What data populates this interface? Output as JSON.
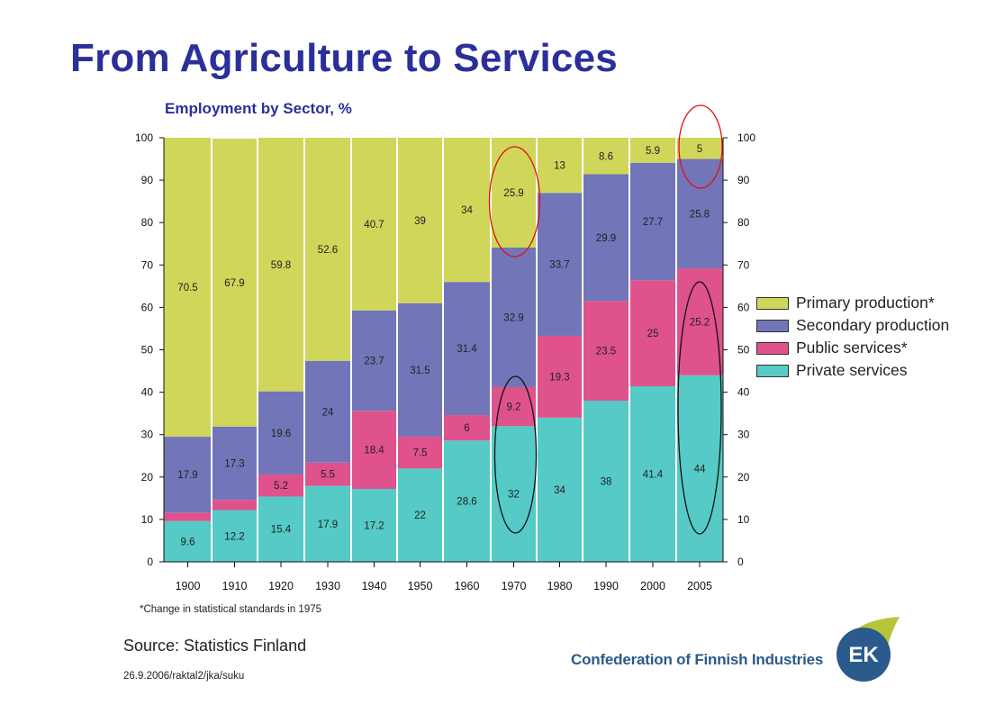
{
  "slide": {
    "title": "From Agriculture to Services",
    "subtitle": "Employment by Sector, %",
    "footnote": "*Change in statistical standards in 1975",
    "source": "Source: Statistics Finland",
    "docref": "26.9.2006/raktal2/jka/suku",
    "logo_text": "Confederation of Finnish Industries",
    "logo_mark": "EK"
  },
  "colors": {
    "primary": "#cfd65a",
    "secondary": "#7275b8",
    "public": "#e0528c",
    "private": "#55cac6",
    "title": "#2b2f9a",
    "logo_blue": "#2b5a8c",
    "logo_green": "#b6c639"
  },
  "chart_data": {
    "type": "bar",
    "stacked": true,
    "categories": [
      "1900",
      "1910",
      "1920",
      "1930",
      "1940",
      "1950",
      "1960",
      "1970",
      "1980",
      "1990",
      "2000",
      "2005"
    ],
    "series": [
      {
        "name": "Private services",
        "key": "private",
        "values": [
          9.6,
          12.2,
          15.4,
          17.9,
          17.2,
          22,
          28.6,
          32,
          34,
          38,
          41.4,
          44
        ]
      },
      {
        "name": "Public services*",
        "key": "public",
        "values": [
          2,
          2.4,
          5.2,
          5.5,
          18.4,
          7.5,
          6,
          9.2,
          19.3,
          23.5,
          25,
          25.2
        ]
      },
      {
        "name": "Secondary production",
        "key": "secondary",
        "values": [
          17.9,
          17.3,
          19.6,
          24,
          23.7,
          31.5,
          31.4,
          32.9,
          33.7,
          29.9,
          27.7,
          25.8
        ]
      },
      {
        "name": "Primary production*",
        "key": "primary",
        "values": [
          70.5,
          67.9,
          59.8,
          52.6,
          40.7,
          39,
          34,
          25.9,
          13,
          8.6,
          5.9,
          5
        ]
      }
    ],
    "data_labels": {
      "private": [
        "9.6",
        "12.2",
        "15.4",
        "17.9",
        "17.2",
        "22",
        "28.6",
        "32",
        "34",
        "38",
        "41.4",
        "44"
      ],
      "public": [
        "",
        "",
        "5.2",
        "5.5",
        "18.4",
        "7.5",
        "6",
        "9.2",
        "19.3",
        "23.5",
        "25",
        "25.2"
      ],
      "secondary": [
        "17.9",
        "17.3",
        "19.6",
        "24",
        "23.7",
        "31.5",
        "31.4",
        "32.9",
        "33.7",
        "29.9",
        "27.7",
        "25.8"
      ],
      "primary": [
        "70.5",
        "67.9",
        "59.8",
        "52.6",
        "40.7",
        "39",
        "34",
        "25.9",
        "13",
        "8.6",
        "5.9",
        "5"
      ]
    },
    "ylim": [
      0,
      100
    ],
    "yticks": [
      0,
      10,
      20,
      30,
      40,
      50,
      60,
      70,
      80,
      90,
      100
    ],
    "legend_position": "right",
    "annotations": [
      {
        "shape": "ellipse",
        "color": "red",
        "category": "1970",
        "series": "primary"
      },
      {
        "shape": "ellipse",
        "color": "red",
        "category": "2005",
        "series": "primary"
      },
      {
        "shape": "ellipse",
        "color": "black",
        "category": "1970",
        "series": "private+public"
      },
      {
        "shape": "ellipse",
        "color": "black",
        "category": "2005",
        "series": "private+public"
      }
    ]
  }
}
